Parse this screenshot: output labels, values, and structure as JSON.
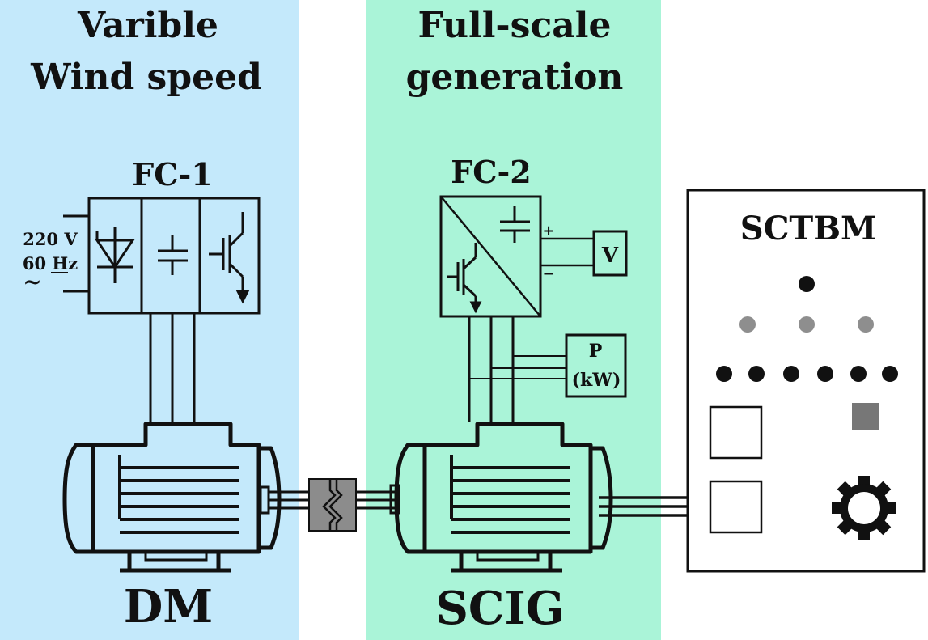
{
  "colors": {
    "left_panel": "#c4e9fb",
    "mid_panel": "#aaf4d8",
    "stroke": "#111111",
    "coupling": "#8c8c8c",
    "led_gray": "#8e8e8e",
    "led_black": "#111111"
  },
  "panels": {
    "left_title": [
      "Varible",
      "Wind speed"
    ],
    "mid_title": [
      "Full-scale",
      "generation"
    ]
  },
  "fc1": {
    "label": "FC-1",
    "supply_voltage": "220 V",
    "supply_freq": "60 Hz",
    "supply_symbol": "~",
    "icons": [
      "diode-icon",
      "capacitor-icon",
      "igbt-icon"
    ]
  },
  "fc2": {
    "label": "FC-2",
    "plus": "+",
    "minus": "−",
    "icons": [
      "capacitor-icon",
      "igbt-icon"
    ]
  },
  "voltmeter": {
    "label": "V"
  },
  "power_meter": {
    "label_top": "P",
    "label_bottom": "(kW)"
  },
  "machines": {
    "dm_label": "DM",
    "scig_label": "SCIG"
  },
  "sctbm": {
    "label": "SCTBM",
    "icons": [
      "indicator-led",
      "square-button",
      "gear-icon"
    ]
  }
}
